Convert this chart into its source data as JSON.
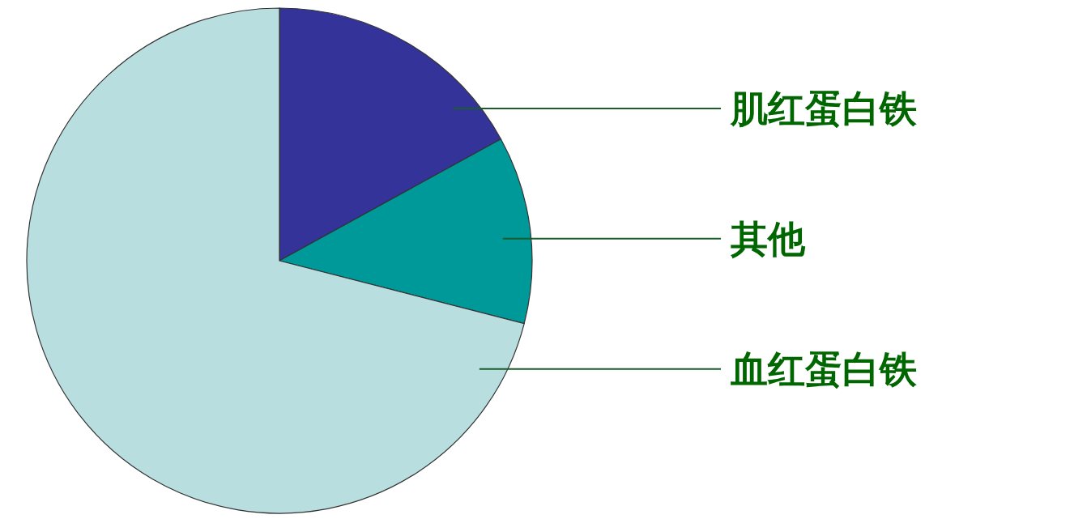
{
  "chart_data": {
    "type": "pie",
    "categories": [
      "肌红蛋白铁",
      "其他",
      "血红蛋白铁"
    ],
    "values": [
      17,
      12,
      71
    ],
    "colors": [
      "#333399",
      "#009999",
      "#b8dee0"
    ]
  }
}
